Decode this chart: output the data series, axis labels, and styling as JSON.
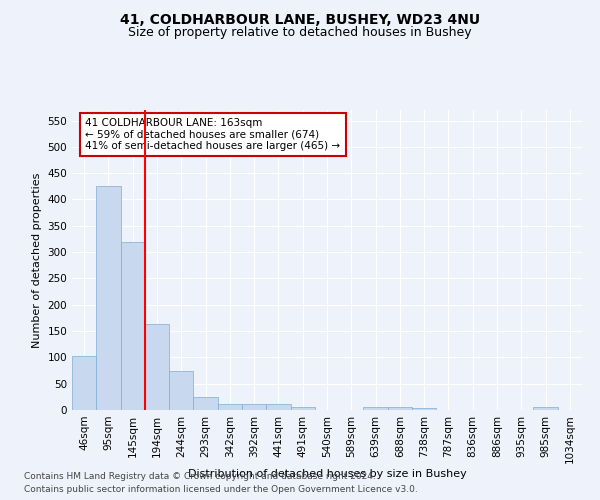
{
  "title_line1": "41, COLDHARBOUR LANE, BUSHEY, WD23 4NU",
  "title_line2": "Size of property relative to detached houses in Bushey",
  "xlabel": "Distribution of detached houses by size in Bushey",
  "ylabel": "Number of detached properties",
  "categories": [
    "46sqm",
    "95sqm",
    "145sqm",
    "194sqm",
    "244sqm",
    "293sqm",
    "342sqm",
    "392sqm",
    "441sqm",
    "491sqm",
    "540sqm",
    "589sqm",
    "639sqm",
    "688sqm",
    "738sqm",
    "787sqm",
    "836sqm",
    "886sqm",
    "935sqm",
    "985sqm",
    "1034sqm"
  ],
  "values": [
    103,
    425,
    320,
    163,
    75,
    25,
    11,
    11,
    11,
    5,
    0,
    0,
    5,
    5,
    3,
    0,
    0,
    0,
    0,
    5,
    0
  ],
  "bar_color": "#c8d8ef",
  "bar_edge_color": "#7eadd4",
  "red_line_x": 2.5,
  "annotation_text": "41 COLDHARBOUR LANE: 163sqm\n← 59% of detached houses are smaller (674)\n41% of semi-detached houses are larger (465) →",
  "annotation_box_color": "#ffffff",
  "annotation_box_edge": "#cc0000",
  "ylim": [
    0,
    570
  ],
  "yticks": [
    0,
    50,
    100,
    150,
    200,
    250,
    300,
    350,
    400,
    450,
    500,
    550
  ],
  "footer_line1": "Contains HM Land Registry data © Crown copyright and database right 2024.",
  "footer_line2": "Contains public sector information licensed under the Open Government Licence v3.0.",
  "bg_color": "#eef2fb",
  "grid_color": "#ffffff",
  "title_fontsize": 10,
  "subtitle_fontsize": 9,
  "axis_label_fontsize": 8,
  "tick_fontsize": 7.5,
  "annotation_fontsize": 7.5,
  "footer_fontsize": 6.5
}
